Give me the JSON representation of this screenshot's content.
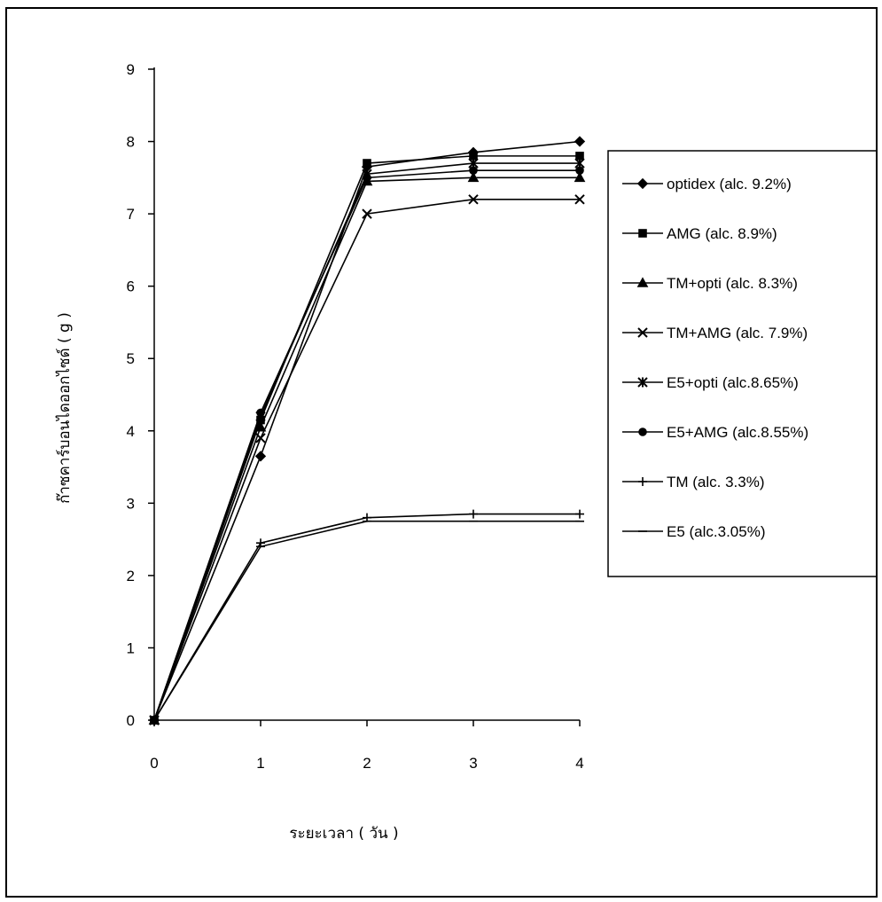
{
  "chart_data": {
    "type": "line",
    "xlabel": "ระยะเวลา ( วัน )",
    "ylabel": "ก๊าซคาร์บอนไดออกไซด์ ( g )",
    "x": [
      0,
      1,
      2,
      3,
      4
    ],
    "xlim": [
      0,
      4
    ],
    "ylim": [
      0,
      9
    ],
    "xticks": [
      "0",
      "1",
      "2",
      "3",
      "4"
    ],
    "yticks": [
      "0",
      "1",
      "2",
      "3",
      "4",
      "5",
      "6",
      "7",
      "8",
      "9"
    ],
    "grid": false,
    "legend_position": "right",
    "series": [
      {
        "name": "optidex (alc. 9.2%)",
        "marker": "diamond",
        "values": [
          0,
          3.65,
          7.65,
          7.85,
          8.0
        ]
      },
      {
        "name": "AMG (alc. 8.9%)",
        "marker": "square",
        "values": [
          0,
          4.15,
          7.7,
          7.8,
          7.8
        ]
      },
      {
        "name": "TM+opti (alc. 8.3%)",
        "marker": "triangle",
        "values": [
          0,
          4.05,
          7.45,
          7.5,
          7.5
        ]
      },
      {
        "name": "TM+AMG (alc. 7.9%)",
        "marker": "x",
        "values": [
          0,
          3.9,
          7.0,
          7.2,
          7.2
        ]
      },
      {
        "name": "E5+opti (alc.8.65%)",
        "marker": "star",
        "values": [
          0,
          4.2,
          7.55,
          7.7,
          7.7
        ]
      },
      {
        "name": "E5+AMG (alc.8.55%)",
        "marker": "circle",
        "values": [
          0,
          4.25,
          7.5,
          7.6,
          7.6
        ]
      },
      {
        "name": "TM (alc. 3.3%)",
        "marker": "plus",
        "values": [
          0,
          2.45,
          2.8,
          2.85,
          2.85
        ]
      },
      {
        "name": "E5 (alc.3.05%)",
        "marker": "dash",
        "values": [
          0,
          2.4,
          2.75,
          2.75,
          2.75
        ]
      }
    ]
  }
}
